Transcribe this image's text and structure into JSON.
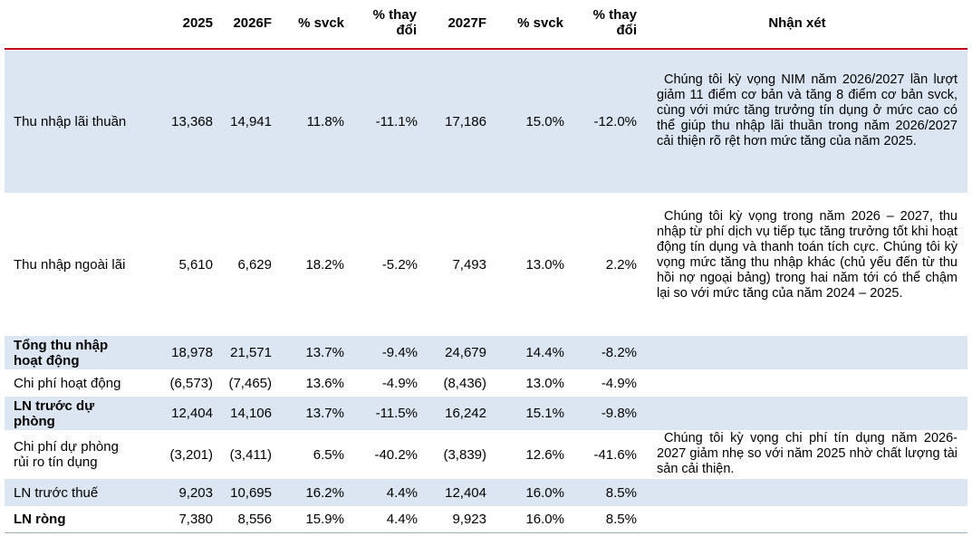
{
  "header": {
    "y2025": "2025",
    "y2026": "2026F",
    "svck1": "% svck",
    "thaydoi1_l1": "% thay",
    "thaydoi1_l2": "đổi",
    "y2027": "2027F",
    "svck2": "% svck",
    "thaydoi2_l1": "% thay",
    "thaydoi2_l2": "đổi",
    "nhanxet": "Nhận xét"
  },
  "rows": [
    {
      "label_l1": "Thu nhập lãi thuần",
      "label_l2": "",
      "v2025": "13,368",
      "v2026": "14,941",
      "svck1": "11.8%",
      "td1": "-11.1%",
      "v2027": "17,186",
      "svck2": "15.0%",
      "td2": "-12.0%"
    },
    {
      "label_l1": "Thu nhập ngoài lãi",
      "label_l2": "",
      "v2025": "5,610",
      "v2026": "6,629",
      "svck1": "18.2%",
      "td1": "-5.2%",
      "v2027": "7,493",
      "svck2": "13.0%",
      "td2": "2.2%"
    },
    {
      "label_l1": "Tổng thu nhập",
      "label_l2": "hoạt động",
      "v2025": "18,978",
      "v2026": "21,571",
      "svck1": "13.7%",
      "td1": "-9.4%",
      "v2027": "24,679",
      "svck2": "14.4%",
      "td2": "-8.2%"
    },
    {
      "label_l1": "Chi phí hoạt động",
      "label_l2": "",
      "v2025": "(6,573)",
      "v2026": "(7,465)",
      "svck1": "13.6%",
      "td1": "-4.9%",
      "v2027": "(8,436)",
      "svck2": "13.0%",
      "td2": "-4.9%"
    },
    {
      "label_l1": "LN trước dự",
      "label_l2": "phòng",
      "v2025": "12,404",
      "v2026": "14,106",
      "svck1": "13.7%",
      "td1": "-11.5%",
      "v2027": "16,242",
      "svck2": "15.1%",
      "td2": "-9.8%"
    },
    {
      "label_l1": "Chi phí dự phòng",
      "label_l2": "rủi ro tín dụng",
      "v2025": "(3,201)",
      "v2026": "(3,411)",
      "svck1": "6.5%",
      "td1": "-40.2%",
      "v2027": "(3,839)",
      "svck2": "12.6%",
      "td2": "-41.6%"
    },
    {
      "label_l1": "LN trước thuế",
      "label_l2": "",
      "v2025": "9,203",
      "v2026": "10,695",
      "svck1": "16.2%",
      "td1": "4.4%",
      "v2027": "12,404",
      "svck2": "16.0%",
      "td2": "8.5%"
    },
    {
      "label_l1": "LN ròng",
      "label_l2": "",
      "v2025": "7,380",
      "v2026": "8,556",
      "svck1": "15.9%",
      "td1": "4.4%",
      "v2027": "9,923",
      "svck2": "16.0%",
      "td2": "8.5%"
    }
  ],
  "comments": {
    "c1": "Chúng tôi kỳ vọng NIM năm 2026/2027 lần lượt giảm 11 điểm cơ bản và tăng 8 điểm cơ bản svck, cùng với mức tăng trưởng tín dụng ở mức cao có thể giúp thu nhập lãi thuần trong năm 2026/2027 cải thiện rõ rệt hơn mức tăng của năm 2025.",
    "c2": "Chúng tôi kỳ vọng trong năm 2026 – 2027, thu nhập từ phí dịch vụ tiếp tục tăng trưởng tốt khi hoạt động tín dụng và thanh toán tích cực. Chúng tôi kỳ vọng mức tăng thu nhập khác (chủ yếu đến từ thu hồi nợ ngoại bảng) trong hai năm tới có thể chậm lại so với mức tăng của năm 2024 – 2025.",
    "c3": "Chúng tôi kỳ vọng chi phí tín dụng năm 2026-2027 giảm nhẹ so với năm 2025 nhờ chất lượng tài sản cải thiện."
  }
}
